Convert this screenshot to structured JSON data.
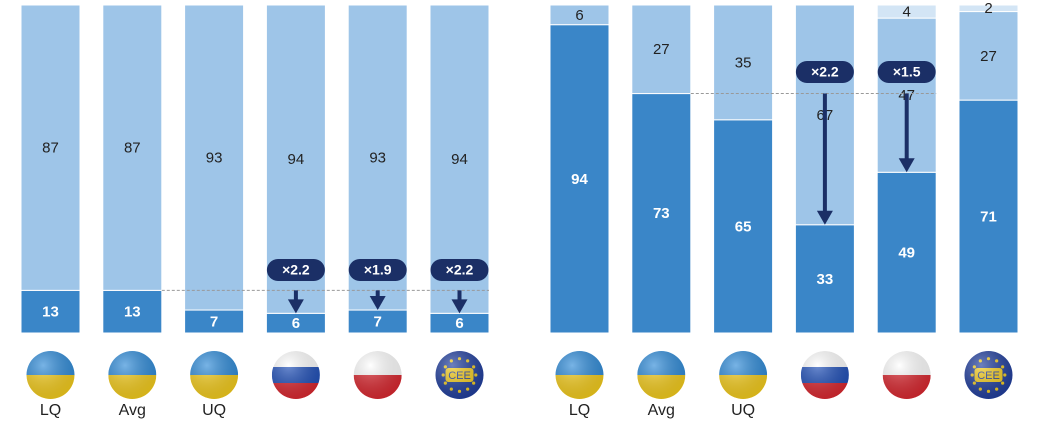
{
  "chart_data": [
    {
      "type": "bar",
      "stacked": true,
      "categories": [
        "LQ",
        "Avg",
        "UQ",
        null,
        null,
        null
      ],
      "series": [
        {
          "color": "#3a86c8",
          "values": [
            13,
            13,
            7,
            6,
            7,
            6
          ]
        },
        {
          "color": "#9ec5e8",
          "values": [
            87,
            87,
            93,
            94,
            93,
            94
          ]
        }
      ],
      "annotations": [
        null,
        null,
        null,
        "×2.2",
        "×1.9",
        "×2.2"
      ],
      "badge_text": "CEE",
      "ylim": [
        0,
        100
      ]
    },
    {
      "type": "bar",
      "stacked": true,
      "categories": [
        "LQ",
        "Avg",
        "UQ",
        null,
        null,
        null
      ],
      "series": [
        {
          "color": "#3a86c8",
          "values": [
            94,
            73,
            65,
            33,
            49,
            71
          ]
        },
        {
          "color": "#9ec5e8",
          "values": [
            6,
            27,
            35,
            67,
            47,
            27
          ]
        },
        {
          "color": "#d3e5f5",
          "values": [
            null,
            null,
            null,
            null,
            4,
            2
          ]
        }
      ],
      "annotations": [
        null,
        null,
        null,
        "×2.2",
        "×1.5",
        null
      ],
      "badge_text": "CEE",
      "ylim": [
        0,
        100
      ]
    }
  ]
}
